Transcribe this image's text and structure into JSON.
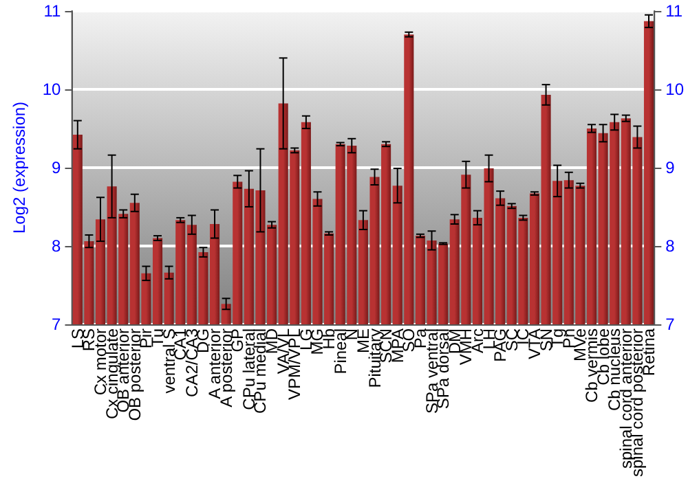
{
  "chart_data": {
    "type": "bar",
    "ylabel": "Log2 (expression)",
    "categories": [
      "LS",
      "RS",
      "Cx motor",
      "Cx cingulate",
      "OB anterior",
      "OB posterior",
      "Pir",
      "Tu",
      "ventral S",
      "CA1",
      "CA2/CA3",
      "DG",
      "A anterior",
      "A posterior",
      "GP",
      "CPu lateral",
      "CPu medial",
      "MD",
      "VA/VL",
      "VPM/VPL",
      "LG",
      "MG",
      "Hb",
      "Pineal",
      "N",
      "ME",
      "Pituitary",
      "SCN",
      "MPA",
      "SO",
      "Pa",
      "SPa ventral",
      "SPa dorsal",
      "DM",
      "VMH",
      "Arc",
      "LH",
      "PAG",
      "SC",
      "IC",
      "VTA",
      "SN",
      "Tg",
      "Pn",
      "MVe",
      "Cb vermis",
      "Cb lobe",
      "Cb nucleus",
      "spinal cord anterior",
      "spinal cord posterior",
      "Retina"
    ],
    "values": [
      9.42,
      8.06,
      8.34,
      8.76,
      8.41,
      8.55,
      7.65,
      8.1,
      7.66,
      8.33,
      8.27,
      7.92,
      8.28,
      7.26,
      8.82,
      8.73,
      8.71,
      8.27,
      9.82,
      9.22,
      9.58,
      8.6,
      8.16,
      9.3,
      9.28,
      8.33,
      8.88,
      9.3,
      8.77,
      10.7,
      8.13,
      8.07,
      8.03,
      8.34,
      8.91,
      8.36,
      8.99,
      8.61,
      8.51,
      8.36,
      8.67,
      9.93,
      8.83,
      8.84,
      8.77,
      9.5,
      9.44,
      9.58,
      9.63,
      9.39,
      10.87
    ],
    "errors": [
      0.18,
      0.08,
      0.28,
      0.4,
      0.05,
      0.11,
      0.09,
      0.03,
      0.08,
      0.03,
      0.12,
      0.06,
      0.18,
      0.07,
      0.08,
      0.23,
      0.53,
      0.04,
      0.58,
      0.03,
      0.08,
      0.09,
      0.02,
      0.02,
      0.09,
      0.12,
      0.1,
      0.03,
      0.22,
      0.03,
      0.02,
      0.12,
      0.01,
      0.06,
      0.17,
      0.09,
      0.17,
      0.09,
      0.03,
      0.03,
      0.02,
      0.13,
      0.2,
      0.1,
      0.03,
      0.05,
      0.11,
      0.1,
      0.04,
      0.14,
      0.08
    ],
    "color": "#b83232",
    "ylim": [
      7,
      11
    ],
    "yticks": [
      7,
      8,
      9,
      10,
      11
    ],
    "y2lim": [
      7,
      11
    ],
    "y2ticks": [
      7,
      8,
      9,
      10,
      11
    ],
    "grid": "y"
  }
}
